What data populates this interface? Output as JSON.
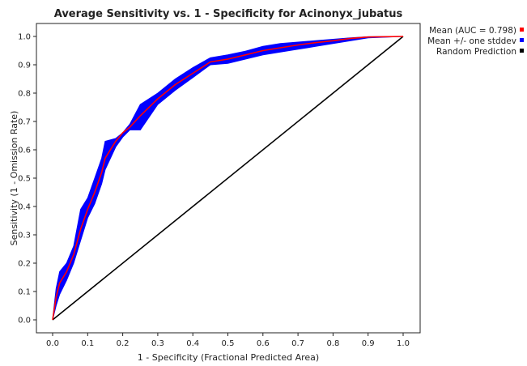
{
  "chart_data": {
    "type": "line",
    "title": "Average Sensitivity vs. 1 - Specificity for Acinonyx_jubatus",
    "xlabel": "1 - Specificity (Fractional Predicted Area)",
    "ylabel": "Sensitivity (1 - Omission Rate)",
    "xlim": [
      0,
      1
    ],
    "ylim": [
      0,
      1
    ],
    "xticks": [
      "0.0",
      "0.1",
      "0.2",
      "0.3",
      "0.4",
      "0.5",
      "0.6",
      "0.7",
      "0.8",
      "0.9",
      "1.0"
    ],
    "yticks": [
      "0.0",
      "0.1",
      "0.2",
      "0.3",
      "0.4",
      "0.5",
      "0.6",
      "0.7",
      "0.8",
      "0.9",
      "1.0"
    ],
    "grid": false,
    "legend_position": "right",
    "series": [
      {
        "name": "Mean (AUC = 0.798)",
        "color": "#ff0000",
        "x": [
          0,
          0.01,
          0.02,
          0.04,
          0.06,
          0.08,
          0.1,
          0.12,
          0.14,
          0.15,
          0.18,
          0.2,
          0.22,
          0.25,
          0.3,
          0.35,
          0.4,
          0.45,
          0.5,
          0.55,
          0.6,
          0.65,
          0.7,
          0.75,
          0.8,
          0.85,
          0.9,
          1.0
        ],
        "y": [
          0,
          0.08,
          0.13,
          0.17,
          0.23,
          0.32,
          0.39,
          0.45,
          0.52,
          0.57,
          0.63,
          0.66,
          0.68,
          0.72,
          0.78,
          0.83,
          0.87,
          0.91,
          0.92,
          0.935,
          0.95,
          0.96,
          0.97,
          0.978,
          0.985,
          0.993,
          0.998,
          1.0
        ]
      },
      {
        "name": "Mean +/- one stddev",
        "color": "#0000ff",
        "x": [
          0,
          0.01,
          0.02,
          0.04,
          0.06,
          0.08,
          0.1,
          0.12,
          0.14,
          0.15,
          0.18,
          0.2,
          0.22,
          0.25,
          0.3,
          0.35,
          0.4,
          0.45,
          0.5,
          0.55,
          0.6,
          0.65,
          0.7,
          0.75,
          0.8,
          0.85,
          0.9,
          1.0
        ],
        "upper": [
          0,
          0.11,
          0.17,
          0.2,
          0.26,
          0.39,
          0.43,
          0.5,
          0.57,
          0.63,
          0.64,
          0.66,
          0.69,
          0.76,
          0.8,
          0.85,
          0.89,
          0.925,
          0.935,
          0.948,
          0.965,
          0.975,
          0.98,
          0.985,
          0.99,
          0.995,
          0.999,
          1.0
        ],
        "lower": [
          0,
          0.05,
          0.09,
          0.14,
          0.2,
          0.28,
          0.36,
          0.41,
          0.48,
          0.53,
          0.61,
          0.645,
          0.67,
          0.67,
          0.76,
          0.81,
          0.855,
          0.9,
          0.905,
          0.92,
          0.935,
          0.945,
          0.955,
          0.965,
          0.975,
          0.985,
          0.995,
          1.0
        ]
      },
      {
        "name": "Random Prediction",
        "color": "#000000",
        "x": [
          0,
          1
        ],
        "y": [
          0,
          1
        ]
      }
    ]
  }
}
